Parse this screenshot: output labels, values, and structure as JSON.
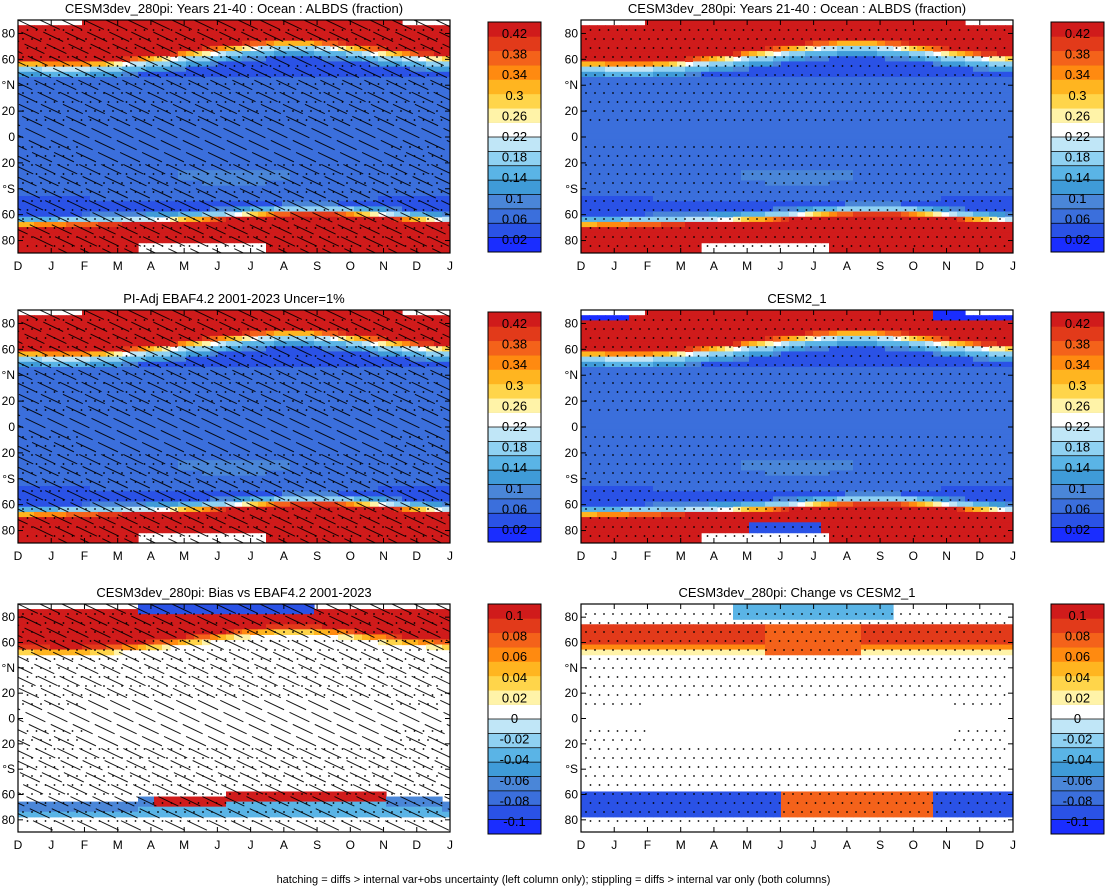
{
  "footer": "hatching = diffs > internal var+obs uncertainty (left column only); stippling = diffs > internal var only (both columns)",
  "palettes": {
    "albedo": [
      "#1a2dff",
      "#2a52e6",
      "#3b6fdc",
      "#4a86d8",
      "#3f9bd8",
      "#5ab4e6",
      "#8fd1f2",
      "#c0e6f7",
      "#ffffff",
      "#fff3a8",
      "#ffd54a",
      "#ffb520",
      "#ff8a10",
      "#f4621a",
      "#e23a1a",
      "#d01b1b"
    ],
    "diff": [
      "#1a2dff",
      "#2a52e6",
      "#3b6fdc",
      "#4a86d8",
      "#3f9bd8",
      "#5ab4e6",
      "#8fd1f2",
      "#c0e6f7",
      "#ffffff",
      "#fff3a8",
      "#ffd54a",
      "#ffb520",
      "#ff8a10",
      "#f4621a",
      "#e23a1a",
      "#d01b1b"
    ]
  },
  "chart_data": [
    {
      "type": "heatmap",
      "title": "CESM3dev_280pi: Years 21-40 : Ocean : ALBDS (fraction)",
      "x_ticks": [
        "D",
        "J",
        "F",
        "M",
        "A",
        "M",
        "J",
        "J",
        "A",
        "S",
        "O",
        "N",
        "D",
        "J"
      ],
      "y_ticks": [
        "80",
        "60",
        "°N",
        "20",
        "0",
        "20",
        "°S",
        "60",
        "80"
      ],
      "colorbar_labels": [
        "0.42",
        "0.38",
        "0.34",
        "0.3",
        "0.26",
        "0.22",
        "0.18",
        "0.14",
        "0.1",
        "0.06",
        "0.02"
      ],
      "colorbar_min": 0.0,
      "colorbar_max": 0.44,
      "field": "albedo",
      "hatching": true,
      "stippling": true
    },
    {
      "type": "heatmap",
      "title": "CESM3dev_280pi: Years 21-40 : Ocean : ALBDS (fraction)",
      "x_ticks": [
        "D",
        "J",
        "F",
        "M",
        "A",
        "M",
        "J",
        "J",
        "A",
        "S",
        "O",
        "N",
        "D",
        "J"
      ],
      "y_ticks": [
        "80",
        "60",
        "°N",
        "20",
        "0",
        "20",
        "°S",
        "60",
        "80"
      ],
      "colorbar_labels": [
        "0.42",
        "0.38",
        "0.34",
        "0.3",
        "0.26",
        "0.22",
        "0.18",
        "0.14",
        "0.1",
        "0.06",
        "0.02"
      ],
      "colorbar_min": 0.0,
      "colorbar_max": 0.44,
      "field": "albedo",
      "hatching": false,
      "stippling": true
    },
    {
      "type": "heatmap",
      "title": "PI-Adj EBAF4.2 2001-2023 Uncer=1%",
      "x_ticks": [
        "D",
        "J",
        "F",
        "M",
        "A",
        "M",
        "J",
        "J",
        "A",
        "S",
        "O",
        "N",
        "D",
        "J"
      ],
      "y_ticks": [
        "80",
        "60",
        "°N",
        "20",
        "0",
        "20",
        "°S",
        "60",
        "80"
      ],
      "colorbar_labels": [
        "0.42",
        "0.38",
        "0.34",
        "0.3",
        "0.26",
        "0.22",
        "0.18",
        "0.14",
        "0.1",
        "0.06",
        "0.02"
      ],
      "colorbar_min": 0.0,
      "colorbar_max": 0.44,
      "field": "albedo",
      "hatching": true,
      "stippling": true
    },
    {
      "type": "heatmap",
      "title": "CESM2_1",
      "x_ticks": [
        "D",
        "J",
        "F",
        "M",
        "A",
        "M",
        "J",
        "J",
        "A",
        "S",
        "O",
        "N",
        "D",
        "J"
      ],
      "y_ticks": [
        "80",
        "60",
        "°N",
        "20",
        "0",
        "20",
        "°S",
        "60",
        "80"
      ],
      "colorbar_labels": [
        "0.42",
        "0.38",
        "0.34",
        "0.3",
        "0.26",
        "0.22",
        "0.18",
        "0.14",
        "0.1",
        "0.06",
        "0.02"
      ],
      "colorbar_min": 0.0,
      "colorbar_max": 0.44,
      "field": "albedo_cesm2",
      "hatching": false,
      "stippling": true
    },
    {
      "type": "heatmap",
      "title": "CESM3dev_280pi: Bias vs EBAF4.2 2001-2023",
      "x_ticks": [
        "D",
        "J",
        "F",
        "M",
        "A",
        "M",
        "J",
        "J",
        "A",
        "S",
        "O",
        "N",
        "D",
        "J"
      ],
      "y_ticks": [
        "80",
        "60",
        "°N",
        "20",
        "0",
        "20",
        "°S",
        "60",
        "80"
      ],
      "colorbar_labels": [
        "0.1",
        "0.08",
        "0.06",
        "0.04",
        "0.02",
        "0",
        "-0.02",
        "-0.04",
        "-0.06",
        "-0.08",
        "-0.1"
      ],
      "colorbar_min": -0.11,
      "colorbar_max": 0.11,
      "field": "bias",
      "hatching": true,
      "stippling": true
    },
    {
      "type": "heatmap",
      "title": "CESM3dev_280pi: Change vs CESM2_1",
      "x_ticks": [
        "D",
        "J",
        "F",
        "M",
        "A",
        "M",
        "J",
        "J",
        "A",
        "S",
        "O",
        "N",
        "D",
        "J"
      ],
      "y_ticks": [
        "80",
        "60",
        "°N",
        "20",
        "0",
        "20",
        "°S",
        "60",
        "80"
      ],
      "colorbar_labels": [
        "0.1",
        "0.08",
        "0.06",
        "0.04",
        "0.02",
        "0",
        "-0.02",
        "-0.04",
        "-0.06",
        "-0.08",
        "-0.1"
      ],
      "colorbar_min": -0.11,
      "colorbar_max": 0.11,
      "field": "change",
      "hatching": false,
      "stippling": true
    }
  ]
}
